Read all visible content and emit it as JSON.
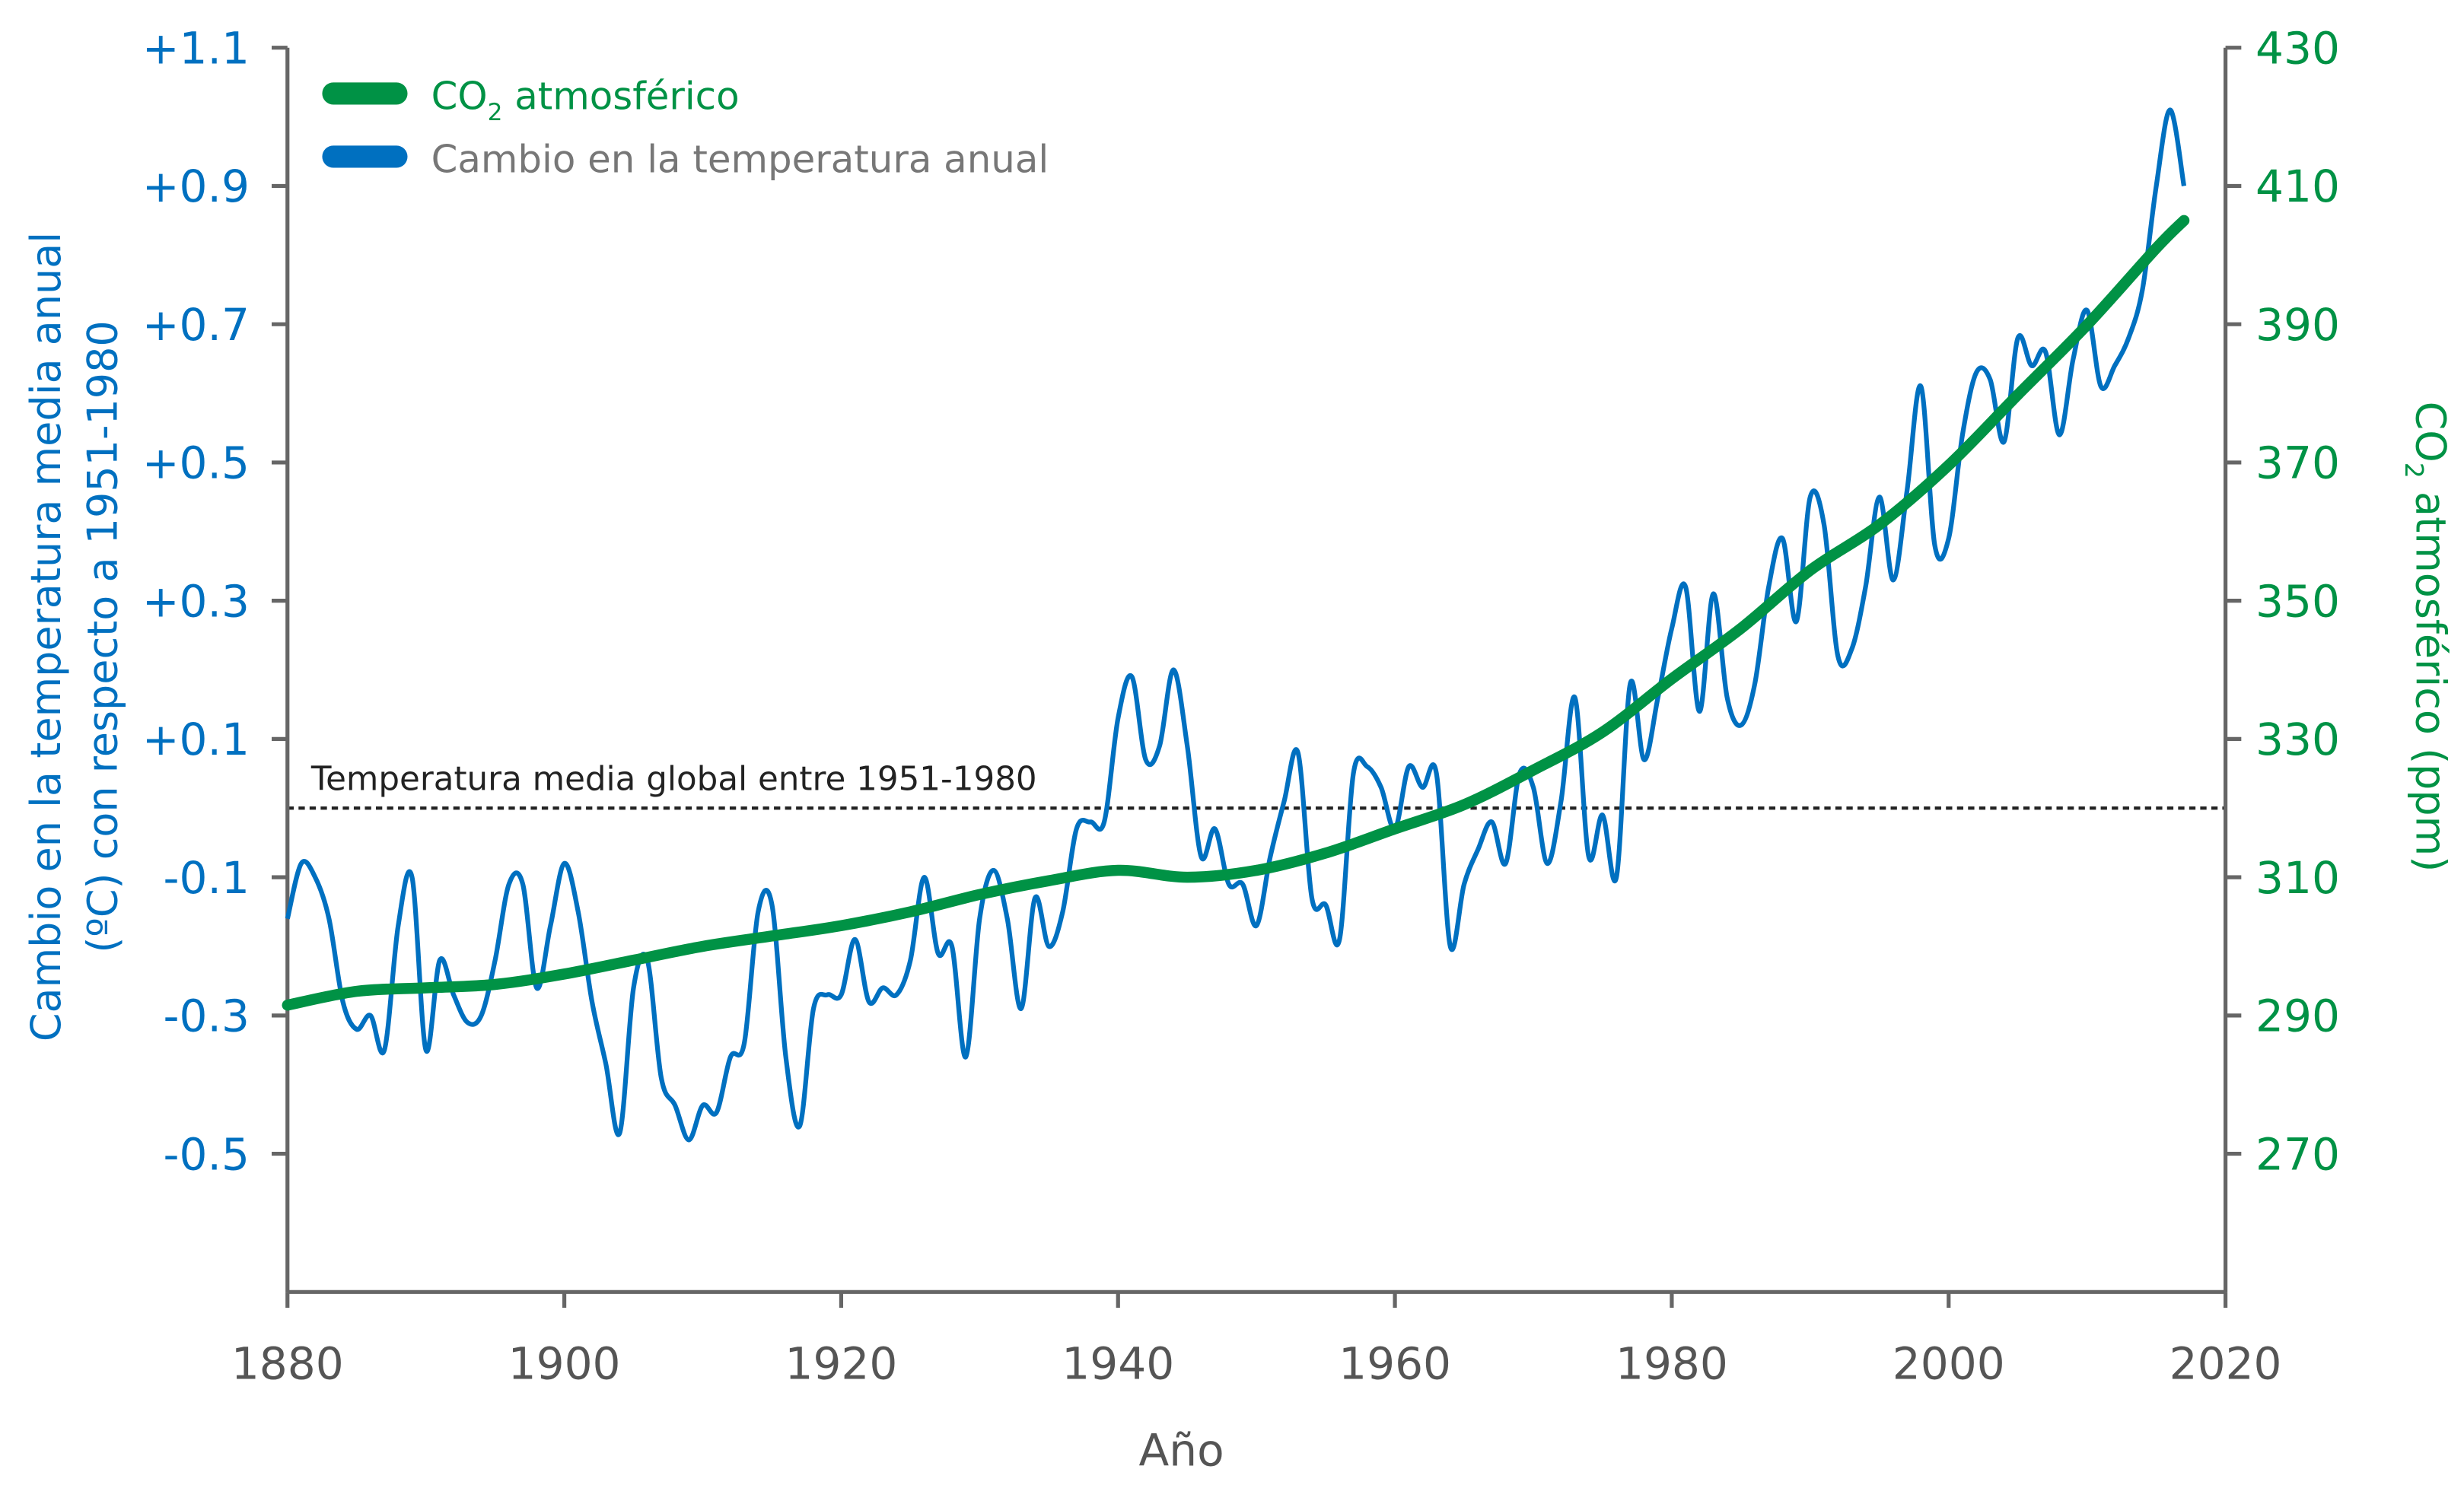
{
  "chart_data": {
    "type": "line",
    "title": "",
    "xlabel": "Año",
    "ylabel_left": "Cambio en la temperatura media anual (ºC) con respecto a 1951-1980",
    "ylabel_left_lines": [
      "Cambio en la temperatura media anual",
      "(ºC) con respecto a 1951-1980"
    ],
    "ylabel_right": "CO2 atmosférico (ppm)",
    "ylabel_right_parts": [
      "CO",
      "2",
      " atmosférico (ppm)"
    ],
    "xlim": [
      1880,
      2020
    ],
    "ylim_left": [
      -0.7,
      1.1
    ],
    "ylim_right": [
      250,
      430
    ],
    "x_ticks": [
      "1880",
      "1900",
      "1920",
      "1940",
      "1960",
      "1980",
      "2000",
      "2020"
    ],
    "y_left_ticks": [
      "+1.1",
      "+0.9",
      "+0.7",
      "+0.5",
      "+0.3",
      "+0.1",
      "-0.1",
      "-0.3",
      "-0.5"
    ],
    "y_left_tick_values": [
      1.1,
      0.9,
      0.7,
      0.5,
      0.3,
      0.1,
      -0.1,
      -0.3,
      -0.5
    ],
    "y_right_ticks": [
      "430",
      "410",
      "390",
      "370",
      "350",
      "330",
      "310",
      "290",
      "270"
    ],
    "y_right_tick_values": [
      430,
      410,
      390,
      370,
      350,
      330,
      310,
      290,
      270
    ],
    "reference_line": {
      "value": 0.0,
      "label": "Temperatura media global entre 1951-1980"
    },
    "legend": {
      "position": "top-left",
      "entries": [
        {
          "parts": [
            "CO",
            "2",
            " atmosférico"
          ],
          "color": "#009245"
        },
        {
          "label": "Cambio en la temperatura anual",
          "color": "#0070c0"
        }
      ]
    },
    "series": [
      {
        "name": "Cambio en la temperatura anual",
        "axis": "left",
        "color": "#0070c0",
        "x_start": 1880,
        "values": [
          -0.16,
          -0.08,
          -0.1,
          -0.16,
          -0.28,
          -0.32,
          -0.3,
          -0.35,
          -0.17,
          -0.1,
          -0.35,
          -0.22,
          -0.27,
          -0.31,
          -0.3,
          -0.22,
          -0.11,
          -0.11,
          -0.26,
          -0.17,
          -0.08,
          -0.15,
          -0.28,
          -0.37,
          -0.47,
          -0.26,
          -0.22,
          -0.39,
          -0.43,
          -0.48,
          -0.43,
          -0.44,
          -0.36,
          -0.34,
          -0.15,
          -0.14,
          -0.36,
          -0.46,
          -0.29,
          -0.27,
          -0.27,
          -0.19,
          -0.28,
          -0.26,
          -0.27,
          -0.22,
          -0.1,
          -0.21,
          -0.2,
          -0.36,
          -0.16,
          -0.09,
          -0.16,
          -0.29,
          -0.13,
          -0.2,
          -0.15,
          -0.03,
          -0.02,
          -0.02,
          0.13,
          0.19,
          0.07,
          0.09,
          0.2,
          0.09,
          -0.07,
          -0.03,
          -0.11,
          -0.11,
          -0.17,
          -0.07,
          0.01,
          0.08,
          -0.13,
          -0.14,
          -0.19,
          0.05,
          0.06,
          0.03,
          -0.03,
          0.06,
          0.03,
          0.05,
          -0.2,
          -0.11,
          -0.06,
          -0.02,
          -0.08,
          0.05,
          0.03,
          -0.08,
          0.01,
          0.16,
          -0.07,
          -0.01,
          -0.1,
          0.18,
          0.07,
          0.16,
          0.26,
          0.32,
          0.14,
          0.31,
          0.16,
          0.12,
          0.18,
          0.32,
          0.39,
          0.27,
          0.45,
          0.41,
          0.22,
          0.23,
          0.32,
          0.45,
          0.33,
          0.46,
          0.61,
          0.38,
          0.39,
          0.54,
          0.63,
          0.62,
          0.53,
          0.68,
          0.64,
          0.66,
          0.54,
          0.65,
          0.72,
          0.61,
          0.64,
          0.68,
          0.75,
          0.9,
          1.01,
          0.9
        ]
      },
      {
        "name": "CO2 atmosférico",
        "axis": "right",
        "color": "#009245",
        "x": [
          1880,
          1885,
          1890,
          1895,
          1900,
          1905,
          1910,
          1915,
          1920,
          1925,
          1930,
          1935,
          1940,
          1945,
          1950,
          1955,
          1960,
          1965,
          1970,
          1975,
          1980,
          1985,
          1990,
          1995,
          2000,
          2005,
          2010,
          2015,
          2017
        ],
        "values": [
          291.5,
          293.5,
          294,
          294.5,
          296,
          298,
          300,
          301.5,
          303,
          305,
          307.5,
          309.5,
          311,
          310,
          311,
          313.5,
          317,
          320.5,
          325.5,
          331,
          338.7,
          346,
          354.4,
          361,
          369.6,
          379.8,
          389.9,
          401,
          405
        ]
      }
    ]
  }
}
